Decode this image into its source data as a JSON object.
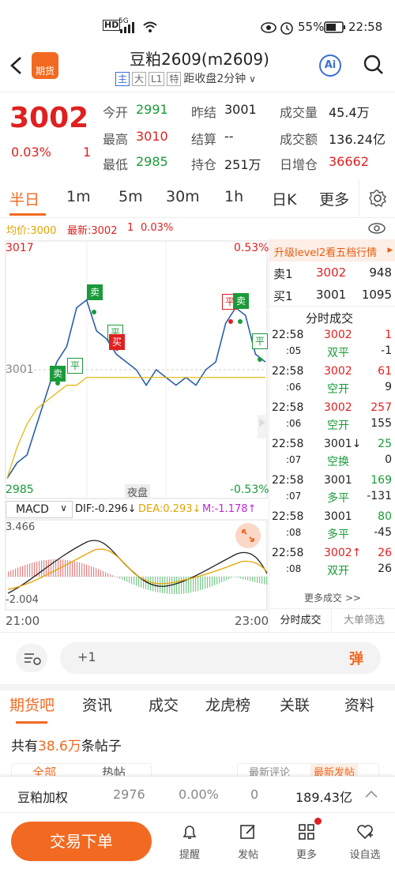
{
  "status_bar": {
    "signal_label": "HD",
    "network": "5G",
    "battery": "55%",
    "time": "22:58"
  },
  "header": {
    "back_icon": "chevron-left-icon",
    "logo_label": "期货",
    "title": "豆粕2609(m2609)",
    "tags": [
      "主",
      "大",
      "L1",
      "特"
    ],
    "subtitle": "距收盘2分钟",
    "ai_label": "Ai",
    "search_icon": "search-icon"
  },
  "quote": {
    "price": "3002",
    "change_pct": "0.03%",
    "change": "1",
    "fields": [
      {
        "label": "今开",
        "value": "2991",
        "color": "green"
      },
      {
        "label": "昨结",
        "value": "3001",
        "color": "dark"
      },
      {
        "label": "成交量",
        "value": "45.4万",
        "color": "dark"
      },
      {
        "label": "最高",
        "value": "3010",
        "color": "red"
      },
      {
        "label": "结算",
        "value": "--",
        "color": "dark"
      },
      {
        "label": "成交额",
        "value": "136.24亿",
        "color": "dark"
      },
      {
        "label": "最低",
        "value": "2985",
        "color": "green"
      },
      {
        "label": "持仓",
        "value": "251万",
        "color": "dark"
      },
      {
        "label": "日增仓",
        "value": "36662",
        "color": "red"
      }
    ]
  },
  "period_tabs": [
    "半日",
    "1m",
    "5m",
    "30m",
    "1h",
    "日K",
    "更多"
  ],
  "settings_icon": "gear-icon",
  "avg_line": {
    "avg": "均价:3000",
    "latest": "最新:3002",
    "change": "1",
    "pct": "0.03%"
  },
  "eye_icon": "eye-icon",
  "chart": {
    "y_top": "3017",
    "y_bottom": "2985",
    "y_mid": "3001",
    "pct_top": "0.53%",
    "pct_bottom": "-0.53%",
    "session_label": "夜盘",
    "markers": [
      "卖",
      "平",
      "卖",
      "平",
      "买",
      "平",
      "卖",
      "平"
    ],
    "x_start": "21:00",
    "x_end": "23:00"
  },
  "chart_data": {
    "type": "line",
    "series": [
      {
        "values": [
          2987,
          2989,
          2990,
          2994,
          2998,
          3002,
          3004,
          3009,
          3010,
          3006,
          3005,
          3003,
          3002,
          3001,
          2999,
          3001,
          3000,
          2999,
          3000,
          2999,
          3001,
          3002,
          3007,
          3009,
          3008,
          3003,
          3002
        ]
      },
      {
        "values": [
          2987,
          2991,
          2994,
          2996,
          2997,
          2998,
          2999,
          2999,
          3000,
          3000,
          3000,
          3000,
          3000,
          3000,
          3000,
          3000,
          3000,
          3000,
          3000,
          3000,
          3000,
          3000,
          3000,
          3000,
          3000,
          3000,
          3000
        ]
      }
    ],
    "ylim": [
      2985,
      3017
    ]
  },
  "macd": {
    "label": "MACD",
    "dif": "DIF:-0.296↓",
    "dea": "DEA:0.293↓",
    "m": "M:-1.178↑",
    "y_top": "3.466",
    "y_bottom": "-2.004",
    "expand_icon": "expand-icon"
  },
  "orderbook": {
    "promo": "升级level2看五档行情",
    "sell": {
      "label": "卖1",
      "price": "3002",
      "vol": "948"
    },
    "buy": {
      "label": "买1",
      "price": "3001",
      "vol": "1095"
    },
    "title": "分时成交",
    "trades": [
      {
        "t1": "22:58",
        "t2": ":05",
        "price": "3002",
        "vol": "1",
        "type": "双平",
        "chg": "-1"
      },
      {
        "t1": "22:58",
        "t2": ":06",
        "price": "3002",
        "vol": "61",
        "type": "空开",
        "chg": "9"
      },
      {
        "t1": "22:58",
        "t2": ":06",
        "price": "3002",
        "vol": "257",
        "type": "空开",
        "chg": "155"
      },
      {
        "t1": "22:58",
        "t2": ":07",
        "price": "3001↓",
        "vol": "25",
        "type": "空换",
        "chg": "0"
      },
      {
        "t1": "22:58",
        "t2": ":07",
        "price": "3001",
        "vol": "169",
        "type": "多平",
        "chg": "-131"
      },
      {
        "t1": "22:58",
        "t2": ":08",
        "price": "3001",
        "vol": "80",
        "type": "多平",
        "chg": "-45"
      },
      {
        "t1": "22:58",
        "t2": ":08",
        "price": "3002↑",
        "vol": "26",
        "type": "双开",
        "chg": "26"
      }
    ],
    "more": "更多成交 >>",
    "tab1": "分时成交",
    "tab2": "大单筛选"
  },
  "comment_bar": {
    "placeholder": "+1",
    "danmu_label": "弹"
  },
  "section_tabs": [
    "期货吧",
    "资讯",
    "成交",
    "龙虎榜",
    "关联",
    "资料"
  ],
  "posts": {
    "prefix": "共有",
    "count": "38.6万",
    "suffix": "条帖子",
    "filter1": "全部",
    "filter2": "热帖",
    "sort1": "最新评论",
    "sort2": "最新发帖"
  },
  "related": {
    "name": "豆粕加权",
    "price": "2976",
    "pct": "0.00%",
    "chg": "0",
    "amount": "189.43亿"
  },
  "bottom": {
    "trade_btn": "交易下单",
    "items": [
      {
        "label": "提醒",
        "icon": "bell-icon"
      },
      {
        "label": "发帖",
        "icon": "edit-icon"
      },
      {
        "label": "更多",
        "icon": "grid-icon"
      },
      {
        "label": "设自选",
        "icon": "heart-plus-icon"
      }
    ]
  }
}
